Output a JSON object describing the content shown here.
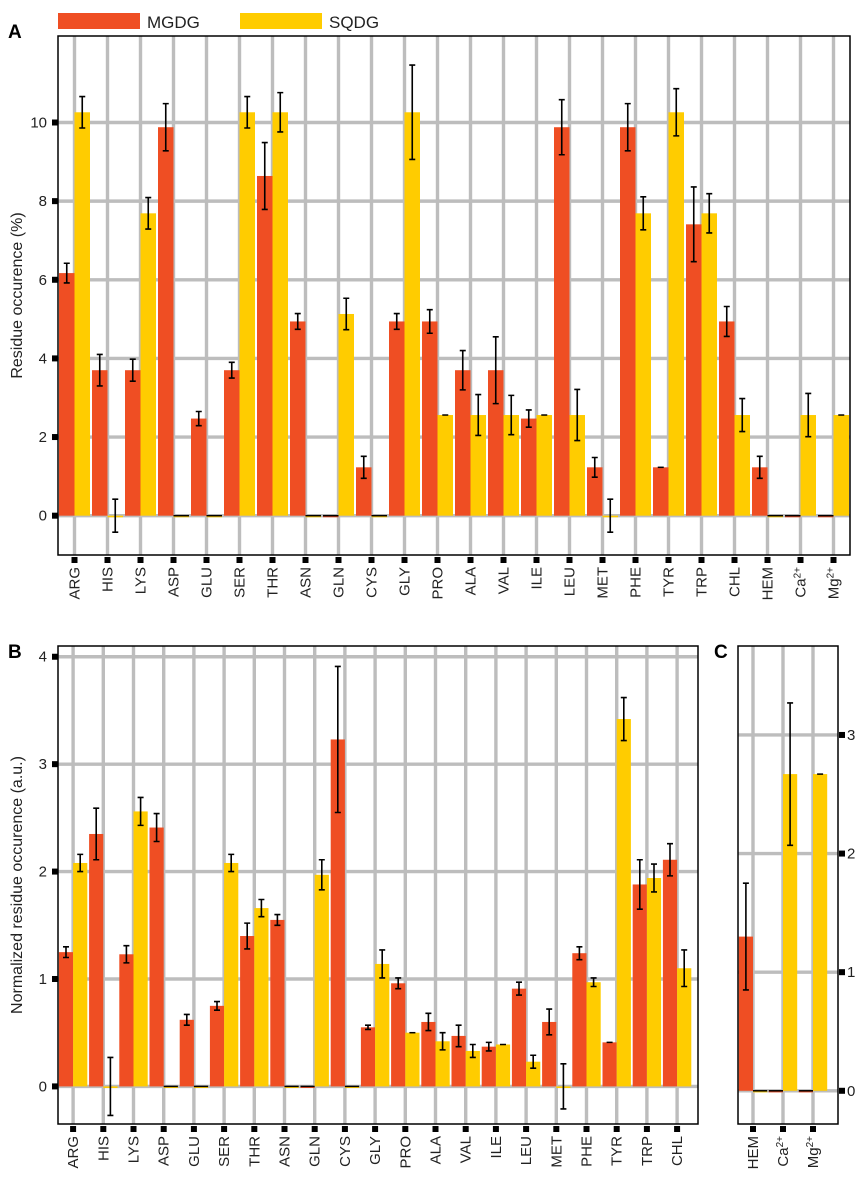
{
  "panel_letters": {
    "a": "A",
    "b": "B",
    "c": "C"
  },
  "legend": [
    {
      "label": "MGDG",
      "color": "#ef4e23"
    },
    {
      "label": "SQDG",
      "color": "#ffcc00"
    }
  ],
  "chart_data": [
    {
      "id": "A",
      "type": "bar",
      "ylabel": "Residue occurence (%)",
      "ylim": [
        -1,
        12.2
      ],
      "yticks": [
        0,
        2,
        4,
        6,
        8,
        10
      ],
      "grid": true,
      "legend_position": "top-left",
      "categories": [
        "ARG",
        "HIS",
        "LYS",
        "ASP",
        "GLU",
        "SER",
        "THR",
        "ASN",
        "GLN",
        "CYS",
        "GLY",
        "PRO",
        "ALA",
        "VAL",
        "ILE",
        "LEU",
        "MET",
        "PHE",
        "TYR",
        "TRP",
        "CHL",
        "HEM",
        "Ca2+",
        "Mg2+"
      ],
      "series": [
        {
          "name": "MGDG",
          "color": "#ef4e23",
          "values": [
            6.17,
            3.7,
            3.7,
            9.88,
            2.47,
            3.7,
            8.64,
            4.94,
            0,
            1.23,
            4.94,
            4.94,
            3.7,
            3.7,
            2.47,
            9.88,
            1.23,
            9.88,
            1.23,
            7.41,
            4.94,
            1.23,
            0,
            0
          ],
          "errors": [
            0.25,
            0.4,
            0.28,
            0.6,
            0.18,
            0.2,
            0.85,
            0.2,
            0,
            0.28,
            0.2,
            0.3,
            0.5,
            0.85,
            0.22,
            0.7,
            0.25,
            0.6,
            0,
            0.95,
            0.38,
            0.28,
            0,
            0
          ]
        },
        {
          "name": "SQDG",
          "color": "#ffcc00",
          "values": [
            10.26,
            0,
            7.69,
            0,
            0,
            10.26,
            10.26,
            0,
            5.13,
            0,
            10.26,
            2.56,
            2.56,
            2.56,
            2.56,
            2.56,
            0,
            7.69,
            10.26,
            7.69,
            2.56,
            0,
            2.56,
            2.56
          ],
          "errors": [
            0.4,
            0.42,
            0.4,
            0,
            0,
            0.4,
            0.5,
            0,
            0.4,
            0,
            1.2,
            0,
            0.52,
            0.5,
            0,
            0.65,
            0.42,
            0.42,
            0.6,
            0.5,
            0.42,
            0,
            0.55,
            0
          ]
        }
      ]
    },
    {
      "id": "B",
      "type": "bar",
      "ylabel": "Normalized residue occurence (a.u.)",
      "ylim": [
        -0.35,
        4.1
      ],
      "yticks": [
        0,
        1,
        2,
        3,
        4
      ],
      "grid": true,
      "categories": [
        "ARG",
        "HIS",
        "LYS",
        "ASP",
        "GLU",
        "SER",
        "THR",
        "ASN",
        "GLN",
        "CYS",
        "GLY",
        "PRO",
        "ALA",
        "VAL",
        "ILE",
        "LEU",
        "MET",
        "PHE",
        "TYR",
        "TRP",
        "CHL"
      ],
      "series": [
        {
          "name": "MGDG",
          "color": "#ef4e23",
          "values": [
            1.25,
            2.35,
            1.23,
            2.41,
            0.62,
            0.75,
            1.4,
            1.55,
            0,
            3.23,
            0.55,
            0.96,
            0.6,
            0.47,
            0.37,
            0.91,
            0.6,
            1.24,
            0.41,
            1.88,
            2.11
          ],
          "errors": [
            0.05,
            0.24,
            0.08,
            0.13,
            0.05,
            0.04,
            0.12,
            0.05,
            0,
            0.68,
            0.02,
            0.05,
            0.08,
            0.1,
            0.04,
            0.06,
            0.12,
            0.06,
            0,
            0.23,
            0.15
          ]
        },
        {
          "name": "SQDG",
          "color": "#ffcc00",
          "values": [
            2.08,
            0,
            2.56,
            0,
            0,
            2.08,
            1.66,
            0,
            1.97,
            0,
            1.14,
            0.5,
            0.42,
            0.33,
            0.39,
            0.23,
            0,
            0.97,
            3.42,
            1.94,
            1.1
          ],
          "errors": [
            0.08,
            0.27,
            0.13,
            0,
            0,
            0.08,
            0.08,
            0,
            0.14,
            0,
            0.13,
            0,
            0.08,
            0.06,
            0,
            0.06,
            0.21,
            0.04,
            0.2,
            0.13,
            0.17
          ]
        }
      ]
    },
    {
      "id": "C",
      "type": "bar",
      "ylim": [
        -0.28,
        3.75
      ],
      "yticks": [
        0,
        1,
        2,
        3
      ],
      "yaxis_side": "right",
      "grid": true,
      "categories": [
        "HEM",
        "Ca2+",
        "Mg2+"
      ],
      "series": [
        {
          "name": "MGDG",
          "color": "#ef4e23",
          "values": [
            1.3,
            0,
            0
          ],
          "errors": [
            0.45,
            0,
            0
          ]
        },
        {
          "name": "SQDG",
          "color": "#ffcc00",
          "values": [
            0,
            2.67,
            2.67
          ],
          "errors": [
            0,
            0.6,
            0
          ]
        }
      ]
    }
  ]
}
